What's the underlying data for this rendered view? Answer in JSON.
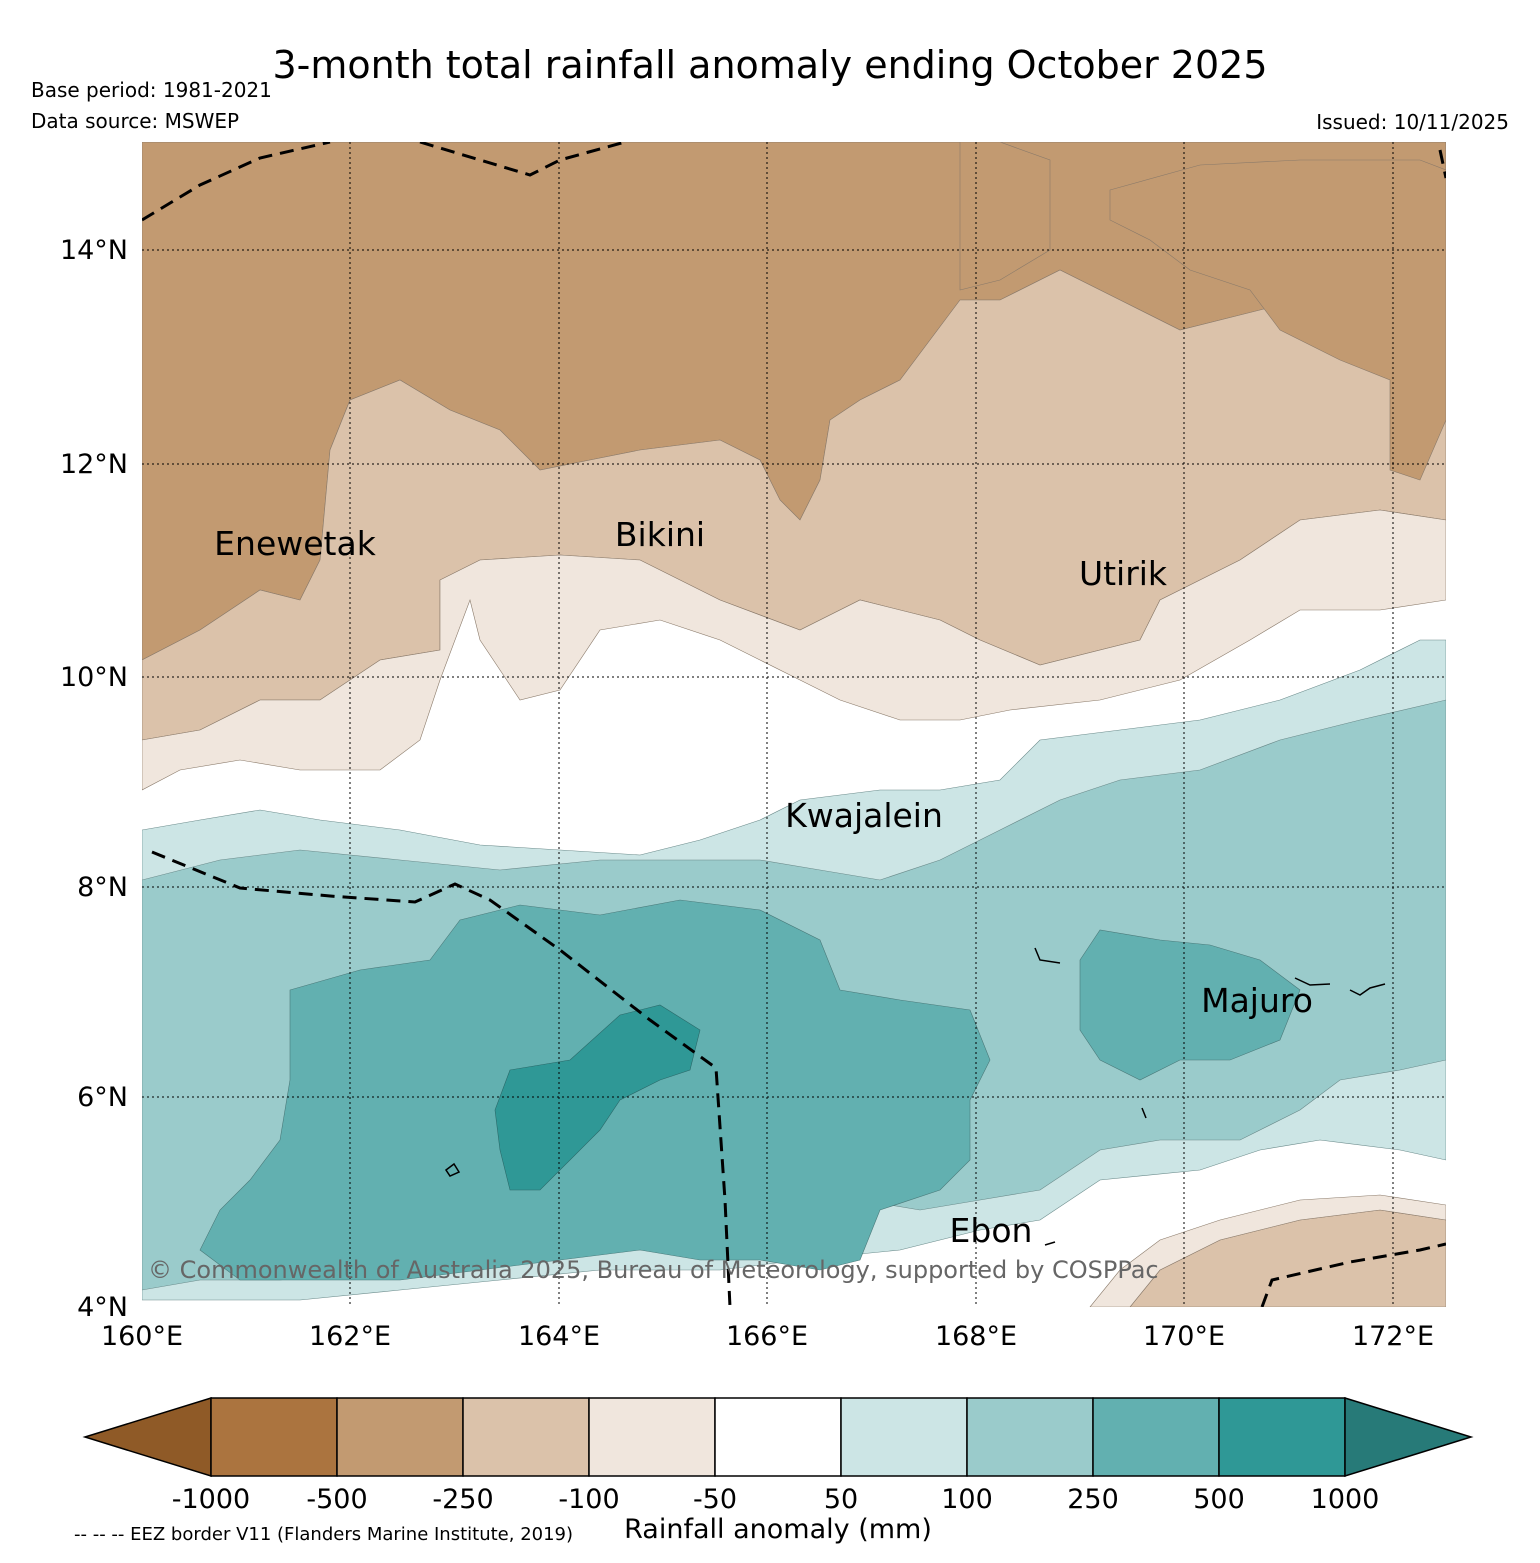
{
  "header": {
    "title": "3-month total rainfall anomaly ending October 2025",
    "base_period": "Base period: 1981-2021",
    "data_source": "Data source: MSWEP",
    "issued": "Issued: 10/11/2025"
  },
  "map": {
    "lon_labels": [
      "160°E",
      "162°E",
      "164°E",
      "166°E",
      "168°E",
      "170°E",
      "172°E"
    ],
    "lat_labels": [
      "14°N",
      "12°N",
      "10°N",
      "8°N",
      "6°N",
      "4°N"
    ],
    "lon_range": [
      160,
      172.5
    ],
    "lat_range": [
      4,
      15
    ],
    "islands": [
      {
        "name": "Enewetak",
        "lon": 162.2,
        "lat": 11.4
      },
      {
        "name": "Bikini",
        "lon": 165.4,
        "lat": 11.6
      },
      {
        "name": "Utirik",
        "lon": 169.2,
        "lat": 11.2
      },
      {
        "name": "Kwajalein",
        "lon": 167.7,
        "lat": 8.7
      },
      {
        "name": "Majuro",
        "lon": 171.2,
        "lat": 7.1
      },
      {
        "name": "Ebon",
        "lon": 168.7,
        "lat": 4.6
      }
    ],
    "credit": "© Commonwealth of Australia 2025, Bureau of Meteorology, supported by COSPPac"
  },
  "colorbar": {
    "ticks": [
      "-1000",
      "-500",
      "-250",
      "-100",
      "-50",
      "50",
      "100",
      "250",
      "500",
      "1000"
    ],
    "colors": [
      "#8f5a27",
      "#ab743f",
      "#c29a71",
      "#dbc2aa",
      "#f0e6dd",
      "#ffffff",
      "#cce5e5",
      "#9acbcb",
      "#62b0b0",
      "#2f9896",
      "#277a78"
    ],
    "label": "Rainfall anomaly (mm)"
  },
  "footer": {
    "eez_note": "-- -- -- EEZ border V11 (Flanders Marine Institute, 2019)"
  }
}
